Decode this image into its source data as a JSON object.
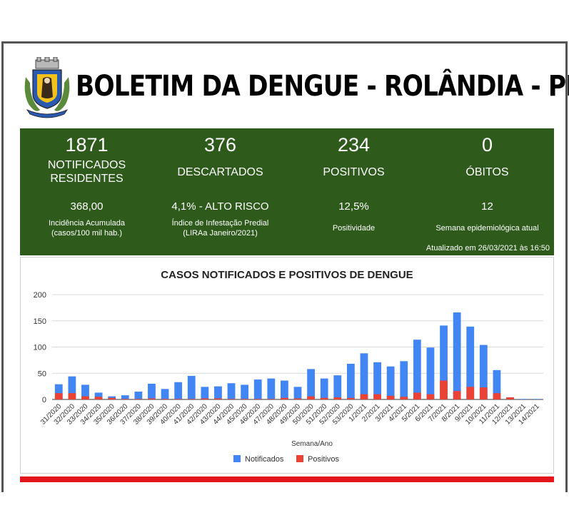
{
  "header": {
    "title": "BOLETIM DA DENGUE - ROLÂNDIA - PR"
  },
  "stats": [
    {
      "value": "1871",
      "label_line1": "NOTIFICADOS",
      "label_line2": "RESIDENTES",
      "metric": "368,00",
      "desc_line1": "Incidência Acumulada",
      "desc_line2": "(casos/100 mil hab.)"
    },
    {
      "value": "376",
      "label_line1": "DESCARTADOS",
      "label_line2": "",
      "metric": "4,1% - ALTO RISCO",
      "desc_line1": "Índice de Infestação Predial",
      "desc_line2": "(LIRAa Janeiro/2021)"
    },
    {
      "value": "234",
      "label_line1": "POSITIVOS",
      "label_line2": "",
      "metric": "12,5%",
      "desc_line1": "Positividade",
      "desc_line2": ""
    },
    {
      "value": "0",
      "label_line1": "ÓBITOS",
      "label_line2": "",
      "metric": "12",
      "desc_line1": "Semana epidemiológica atual",
      "desc_line2": ""
    }
  ],
  "updated": "Atualizado em 26/03/2021 às 16:50",
  "colors": {
    "notificados": "#4285f4",
    "positivos": "#ea4335",
    "panel": "#2e5a1c",
    "accent_bar": "#e3141a"
  },
  "chart_data": {
    "type": "bar",
    "stacked": false,
    "title": "CASOS NOTIFICADOS E POSITIVOS DE DENGUE",
    "xlabel": "Semana/Ano",
    "ylabel": "",
    "ylim": [
      0,
      200
    ],
    "yticks": [
      0,
      50,
      100,
      150,
      200
    ],
    "grid": true,
    "legend_position": "bottom",
    "categories": [
      "31/2020",
      "32/2020",
      "33/2020",
      "34/2020",
      "35/2020",
      "36/2020",
      "37/2020",
      "38/2020",
      "39/2020",
      "40/2020",
      "41/2020",
      "42/2020",
      "43/2020",
      "44/2020",
      "45/2020",
      "46/2020",
      "47/2020",
      "48/2020",
      "49/2020",
      "50/2020",
      "51/2020",
      "52/2020",
      "53/2020",
      "1/2021",
      "2/2021",
      "3/2021",
      "4/2021",
      "5/2021",
      "6/2021",
      "7/2021",
      "8/2021",
      "9/2021",
      "10/2021",
      "11/2021",
      "12/2021",
      "13/2021",
      "14/2021"
    ],
    "series": [
      {
        "name": "Notificados",
        "values": [
          29,
          44,
          28,
          13,
          6,
          8,
          15,
          30,
          20,
          33,
          45,
          24,
          25,
          31,
          28,
          38,
          40,
          36,
          24,
          58,
          40,
          46,
          68,
          88,
          71,
          63,
          73,
          114,
          99,
          141,
          166,
          139,
          104,
          56,
          4,
          1,
          1
        ]
      },
      {
        "name": "Positivos",
        "values": [
          12,
          12,
          6,
          5,
          3,
          1,
          1,
          2,
          1,
          1,
          1,
          2,
          2,
          1,
          1,
          1,
          1,
          3,
          2,
          6,
          3,
          4,
          3,
          10,
          10,
          7,
          5,
          13,
          10,
          36,
          16,
          24,
          23,
          12,
          4,
          0,
          0
        ]
      }
    ]
  }
}
